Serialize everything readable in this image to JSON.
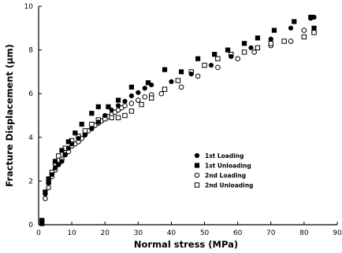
{
  "chart_data": {
    "type": "scatter",
    "xlabel": "Normal stress (MPa)",
    "ylabel": "Fracture Displacement (μm)",
    "xlim": [
      0,
      90
    ],
    "ylim": [
      0,
      10
    ],
    "x_ticks": [
      0,
      10,
      20,
      30,
      40,
      50,
      60,
      70,
      80,
      90
    ],
    "y_ticks": [
      0,
      2,
      4,
      6,
      8,
      10
    ],
    "grid": false,
    "legend_position": "lower-right",
    "series": [
      {
        "name": "1st Loading",
        "marker": "filled-circle",
        "points": [
          [
            2,
            1.4
          ],
          [
            3,
            1.9
          ],
          [
            4,
            2.3
          ],
          [
            5,
            2.6
          ],
          [
            6,
            2.75
          ],
          [
            7,
            2.9
          ],
          [
            8,
            3.2
          ],
          [
            9,
            3.5
          ],
          [
            10,
            3.7
          ],
          [
            12,
            3.95
          ],
          [
            14,
            4.1
          ],
          [
            16,
            4.4
          ],
          [
            18,
            4.7
          ],
          [
            20,
            5.0
          ],
          [
            22,
            5.25
          ],
          [
            24,
            5.45
          ],
          [
            26,
            5.65
          ],
          [
            28,
            5.9
          ],
          [
            30,
            6.05
          ],
          [
            32,
            6.25
          ],
          [
            34,
            6.4
          ],
          [
            40,
            6.55
          ],
          [
            46,
            6.9
          ],
          [
            52,
            7.3
          ],
          [
            58,
            7.7
          ],
          [
            64,
            8.1
          ],
          [
            70,
            8.5
          ],
          [
            76,
            9.0
          ],
          [
            82,
            9.45
          ],
          [
            83,
            9.5
          ]
        ]
      },
      {
        "name": "1st Unloading",
        "marker": "filled-square",
        "points": [
          [
            83,
            9.0
          ],
          [
            82,
            9.5
          ],
          [
            77,
            9.3
          ],
          [
            71,
            8.9
          ],
          [
            66,
            8.55
          ],
          [
            62,
            8.3
          ],
          [
            57,
            8.0
          ],
          [
            53,
            7.8
          ],
          [
            48,
            7.6
          ],
          [
            43,
            7.0
          ],
          [
            38,
            7.1
          ],
          [
            33,
            6.5
          ],
          [
            28,
            6.3
          ],
          [
            24,
            5.7
          ],
          [
            21,
            5.4
          ],
          [
            18,
            5.4
          ],
          [
            16,
            5.1
          ],
          [
            13,
            4.6
          ],
          [
            11,
            4.2
          ],
          [
            9,
            3.8
          ],
          [
            7,
            3.4
          ],
          [
            5,
            2.9
          ],
          [
            3,
            2.1
          ],
          [
            2,
            1.5
          ],
          [
            1,
            0.2
          ],
          [
            1,
            0.05
          ]
        ]
      },
      {
        "name": "2nd Loading",
        "marker": "open-circle",
        "points": [
          [
            2,
            1.2
          ],
          [
            3,
            1.7
          ],
          [
            4,
            2.2
          ],
          [
            5,
            2.5
          ],
          [
            6,
            2.75
          ],
          [
            7,
            3.0
          ],
          [
            8,
            3.2
          ],
          [
            9,
            3.35
          ],
          [
            10,
            3.6
          ],
          [
            11,
            3.7
          ],
          [
            12,
            3.8
          ],
          [
            13,
            3.95
          ],
          [
            14,
            4.15
          ],
          [
            15,
            4.3
          ],
          [
            16,
            4.4
          ],
          [
            17,
            4.55
          ],
          [
            18,
            4.65
          ],
          [
            19,
            4.75
          ],
          [
            20,
            4.85
          ],
          [
            21,
            4.95
          ],
          [
            22,
            5.05
          ],
          [
            23,
            5.15
          ],
          [
            24,
            5.25
          ],
          [
            25,
            5.35
          ],
          [
            26,
            5.45
          ],
          [
            28,
            5.55
          ],
          [
            30,
            5.7
          ],
          [
            32,
            5.85
          ],
          [
            34,
            5.95
          ],
          [
            37,
            6.0
          ],
          [
            43,
            6.3
          ],
          [
            48,
            6.8
          ],
          [
            54,
            7.2
          ],
          [
            60,
            7.6
          ],
          [
            65,
            7.9
          ],
          [
            70,
            8.2
          ],
          [
            76,
            8.4
          ],
          [
            80,
            8.9
          ],
          [
            83,
            8.8
          ]
        ]
      },
      {
        "name": "2nd Unloading",
        "marker": "open-square",
        "points": [
          [
            83,
            8.8
          ],
          [
            80,
            8.6
          ],
          [
            74,
            8.4
          ],
          [
            70,
            8.3
          ],
          [
            66,
            8.1
          ],
          [
            62,
            7.9
          ],
          [
            58,
            7.8
          ],
          [
            54,
            7.6
          ],
          [
            50,
            7.3
          ],
          [
            46,
            7.0
          ],
          [
            42,
            6.6
          ],
          [
            38,
            6.2
          ],
          [
            34,
            5.8
          ],
          [
            31,
            5.5
          ],
          [
            28,
            5.2
          ],
          [
            26,
            5.0
          ],
          [
            24,
            4.9
          ],
          [
            22,
            4.9
          ],
          [
            20,
            4.85
          ],
          [
            18,
            4.8
          ],
          [
            16,
            4.6
          ],
          [
            14,
            4.3
          ],
          [
            12,
            4.05
          ],
          [
            10,
            3.85
          ],
          [
            8,
            3.5
          ],
          [
            6,
            3.15
          ],
          [
            5,
            2.8
          ],
          [
            4,
            2.4
          ],
          [
            3,
            1.95
          ],
          [
            1,
            0.15
          ]
        ]
      }
    ]
  }
}
